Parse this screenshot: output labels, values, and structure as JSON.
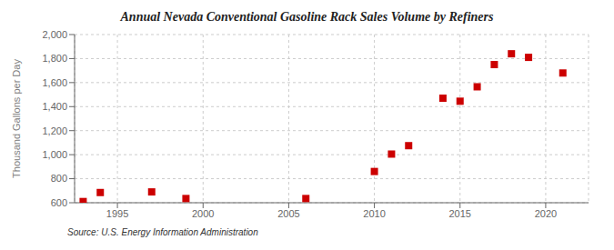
{
  "chart_data": {
    "type": "scatter",
    "title": "Annual Nevada Conventional Gasoline Rack Sales Volume by Refiners",
    "y_label": "Thousand Gallons per Day",
    "annotations": [
      "Source: U.S. Energy Information Administration"
    ],
    "x": [
      1993,
      1994,
      1997,
      1999,
      2006,
      2010,
      2011,
      2012,
      2014,
      2015,
      2016,
      2017,
      2018,
      2019,
      2021
    ],
    "values": [
      610,
      685,
      690,
      635,
      635,
      860,
      1005,
      1075,
      1470,
      1445,
      1565,
      1750,
      1840,
      1810,
      1680
    ],
    "color": "#cc0000",
    "marker": "square",
    "xlim": [
      1992.5,
      2022.5
    ],
    "xticks": [
      1995,
      2000,
      2005,
      2010,
      2015,
      2020
    ],
    "ylim": [
      600,
      2000
    ],
    "yticks": [
      600,
      800,
      {
        "value": 1000,
        "label": "1,000"
      },
      {
        "value": 1200,
        "label": "1,200"
      },
      {
        "value": 1400,
        "label": "1,400"
      },
      {
        "value": 1600,
        "label": "1,600"
      },
      {
        "value": 1800,
        "label": "1,800"
      },
      {
        "value": 2000,
        "label": "2,000"
      }
    ],
    "grid": true
  }
}
